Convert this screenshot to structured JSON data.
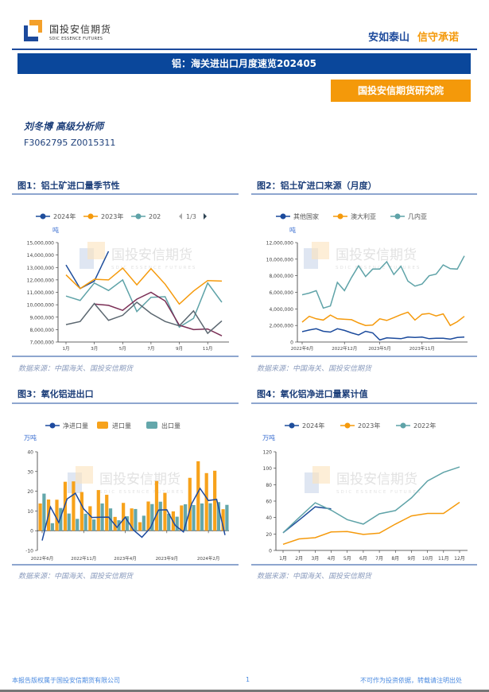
{
  "header": {
    "logo_cn": "国投安信期货",
    "logo_en": "SDIC ESSENCE FUTURES",
    "slogan_a": "安如泰山",
    "slogan_b": "信守承诺"
  },
  "title": "铝：海关进出口月度速览202405",
  "institute": "国投安信期货研究院",
  "author": {
    "name": "刘冬博  高级分析师",
    "ids": "F3062795  Z0015311"
  },
  "watermark": {
    "cn": "国投安信期货",
    "en": "SDIC ESSENCE FUTURES"
  },
  "source_text": "数据来源：中国海关、国投安信期货",
  "footer": {
    "left": "本报告版权属于国投安信期货有限公司",
    "page": "1",
    "right": "不可作为投资依据，转载请注明出处"
  },
  "colors": {
    "navy": "#0a479b",
    "orange": "#f4990a",
    "teal": "#5fa3a8"
  },
  "chart_data": [
    {
      "figure": "图1：铝土矿进口量季节性",
      "type": "line",
      "unit": "吨",
      "legend": [
        "2024年",
        "2023年",
        "202"
      ],
      "legend_pager": "1/3",
      "x": [
        "1月",
        "2月",
        "3月",
        "4月",
        "5月",
        "6月",
        "7月",
        "8月",
        "9月",
        "10月",
        "11月",
        "12月"
      ],
      "x_tick_labels": [
        "1月",
        "3月",
        "5月",
        "7月",
        "9月",
        "11月"
      ],
      "ylim": [
        7000000,
        15000000
      ],
      "y_tick_labels": [
        "7,000,000",
        "8,000,000",
        "9,000,000",
        "10,000,000",
        "11,000,000",
        "12,000,000",
        "13,000,000",
        "14,000,000",
        "15,000,000"
      ],
      "series": [
        {
          "name": "2024年",
          "color": "#1f4e9c",
          "values": [
            13200000,
            11300000,
            11900000,
            14300000,
            null,
            null,
            null,
            null,
            null,
            null,
            null,
            null
          ]
        },
        {
          "name": "2023年",
          "color": "#f59a0c",
          "values": [
            12400000,
            11300000,
            12050000,
            12000000,
            12950000,
            11600000,
            12900000,
            11650000,
            10050000,
            11100000,
            11950000,
            11900000
          ]
        },
        {
          "color": "#5fa3a8",
          "values": [
            10700000,
            10350000,
            11750000,
            11150000,
            12000000,
            9450000,
            10600000,
            10650000,
            8200000,
            8900000,
            11750000,
            10200000
          ]
        },
        {
          "color": "#7a2e55",
          "values": [
            null,
            null,
            10050000,
            9950000,
            9550000,
            10450000,
            11000000,
            10300000,
            8350000,
            8000000,
            8050000,
            7500000
          ]
        },
        {
          "color": "#5b6770",
          "values": [
            8400000,
            8650000,
            10100000,
            8750000,
            9150000,
            10200000,
            9300000,
            8650000,
            8300000,
            9500000,
            7700000,
            8700000
          ]
        }
      ]
    },
    {
      "figure": "图2：铝土矿进口来源（月度）",
      "type": "line",
      "unit": "吨",
      "legend": [
        "其他国家",
        "澳大利亚",
        "几内亚"
      ],
      "x": [
        "2022-06",
        "2022-07",
        "2022-08",
        "2022-09",
        "2022-10",
        "2022-11",
        "2022-12",
        "2023-01",
        "2023-02",
        "2023-03",
        "2023-04",
        "2023-05",
        "2023-06",
        "2023-07",
        "2023-08",
        "2023-09",
        "2023-10",
        "2023-11",
        "2023-12",
        "2024-01",
        "2024-02",
        "2024-03",
        "2024-04",
        "2024-05"
      ],
      "x_tick_labels": [
        "2022年6月",
        "2022年12月",
        "2023年5月",
        "2023年11月"
      ],
      "ylim": [
        0,
        12000000
      ],
      "y_tick_labels": [
        "0",
        "2,000,000",
        "4,000,000",
        "6,000,000",
        "8,000,000",
        "10,000,000",
        "12,000,000"
      ],
      "series": [
        {
          "name": "其他国家",
          "color": "#1b4a9c",
          "values": [
            1250000,
            1450000,
            1600000,
            1300000,
            1200000,
            1600000,
            1400000,
            1100000,
            850000,
            1300000,
            1100000,
            250000,
            500000,
            450000,
            400000,
            600000,
            550000,
            600000,
            400000,
            450000,
            450000,
            350000,
            550000,
            600000
          ]
        },
        {
          "name": "澳大利亚",
          "color": "#f59a0c",
          "values": [
            2400000,
            3100000,
            2800000,
            2650000,
            3250000,
            2800000,
            2750000,
            2700000,
            2300000,
            2000000,
            2050000,
            2800000,
            2600000,
            2950000,
            3300000,
            3600000,
            2650000,
            3350000,
            3450000,
            3150000,
            3400000,
            2000000,
            2450000,
            3100000
          ]
        },
        {
          "name": "几内亚",
          "color": "#5fa3a8",
          "values": [
            5700000,
            5900000,
            6200000,
            4100000,
            4350000,
            7200000,
            6200000,
            7800000,
            9200000,
            7900000,
            8800000,
            8800000,
            9700000,
            8150000,
            9150000,
            7350000,
            6750000,
            7000000,
            8000000,
            8200000,
            9300000,
            8850000,
            8800000,
            10400000
          ]
        }
      ]
    },
    {
      "figure": "图3：氧化铝进出口",
      "type": "bar",
      "unit": "万吨",
      "legend": [
        "净进口量",
        "进口量",
        "出口量"
      ],
      "x": [
        "2022-06",
        "2022-07",
        "2022-08",
        "2022-09",
        "2022-10",
        "2022-11",
        "2022-12",
        "2023-01",
        "2023-02",
        "2023-03",
        "2023-04",
        "2023-05",
        "2023-06",
        "2023-07",
        "2023-08",
        "2023-09",
        "2023-10",
        "2023-11",
        "2023-12",
        "2024-01",
        "2024-02",
        "2024-03",
        "2024-04"
      ],
      "x_tick_labels": [
        "2022年6月",
        "2022年11月",
        "2023年4月",
        "2023年9月",
        "2024年2月"
      ],
      "ylim": [
        -10,
        40
      ],
      "y_tick_labels": [
        "-10",
        "0",
        "10",
        "20",
        "30",
        "40"
      ],
      "series": [
        {
          "name": "进口量",
          "color": "#f7a21b",
          "kind": "bar",
          "values": [
            13.8,
            15.8,
            15.7,
            24.8,
            25.0,
            19.6,
            12.4,
            20.6,
            18.2,
            7.0,
            14.1,
            11.3,
            4.3,
            14.8,
            25.2,
            19.2,
            9.8,
            12.8,
            26.8,
            35.2,
            29.2,
            30.4,
            10.9
          ]
        },
        {
          "name": "出口量",
          "color": "#64a7ab",
          "kind": "bar",
          "values": [
            18.8,
            3.8,
            11.5,
            8.7,
            6.0,
            8.6,
            5.7,
            13.8,
            11.3,
            5.3,
            7.3,
            11.0,
            7.6,
            13.5,
            14.7,
            8.6,
            7.1,
            13.4,
            13.0,
            13.8,
            13.9,
            14.5,
            13.1
          ]
        },
        {
          "name": "净进口量",
          "color": "#1d4a9f",
          "kind": "line",
          "values": [
            -5.0,
            12.0,
            4.2,
            16.1,
            19.0,
            11.0,
            6.7,
            6.8,
            6.9,
            1.7,
            6.8,
            0.3,
            -3.3,
            1.3,
            10.5,
            10.6,
            2.7,
            -0.6,
            13.8,
            21.4,
            15.3,
            15.9,
            -2.2
          ]
        }
      ]
    },
    {
      "figure": "图4：氧化铝净进口量累计值",
      "type": "line",
      "unit": "万吨",
      "legend": [
        "2024年",
        "2023年",
        "2022年"
      ],
      "x": [
        "1月",
        "2月",
        "3月",
        "4月",
        "5月",
        "6月",
        "7月",
        "8月",
        "9月",
        "10月",
        "11月",
        "12月"
      ],
      "x_tick_labels": [
        "1月",
        "2月",
        "3月",
        "4月",
        "5月",
        "6月",
        "7月",
        "8月",
        "9月",
        "10月",
        "11月",
        "12月"
      ],
      "ylim": [
        0,
        120
      ],
      "y_tick_labels": [
        "0",
        "20",
        "40",
        "60",
        "80",
        "100",
        "120"
      ],
      "series": [
        {
          "name": "2024年",
          "color": "#1f4e9c",
          "values": [
            21.5,
            37,
            53,
            50.5,
            null,
            null,
            null,
            null,
            null,
            null,
            null,
            null
          ]
        },
        {
          "name": "2023年",
          "color": "#f59a0c",
          "values": [
            7.5,
            14,
            15.5,
            22.5,
            23,
            19.5,
            21,
            32,
            42,
            45,
            45,
            58.5
          ]
        },
        {
          "name": "2022年",
          "color": "#5fa3a8",
          "values": [
            21.5,
            40,
            58,
            49,
            37.5,
            32,
            44.5,
            48.5,
            64,
            84.5,
            95,
            101.5
          ]
        }
      ]
    }
  ]
}
